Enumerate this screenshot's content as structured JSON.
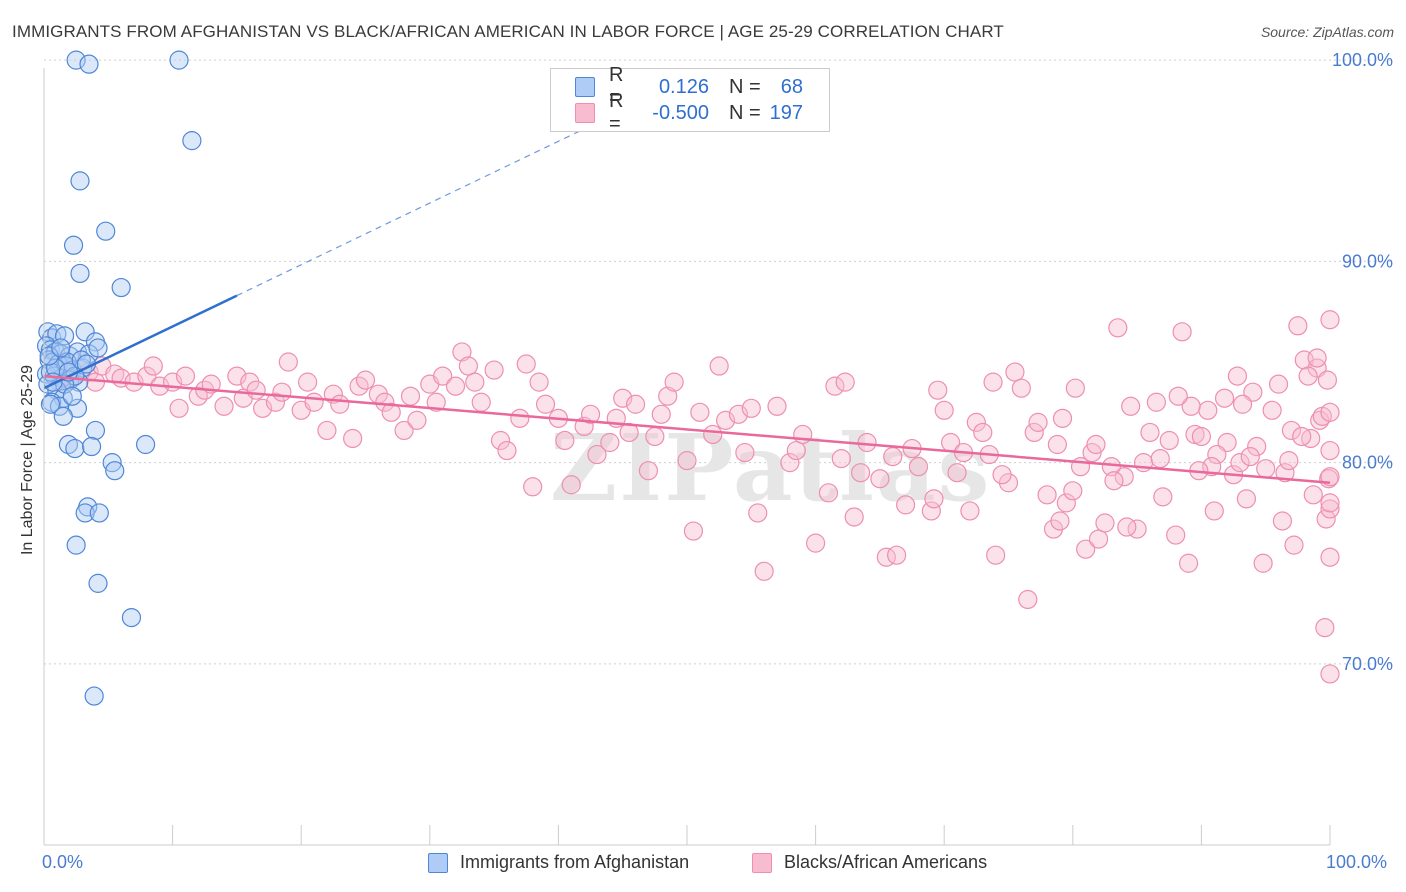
{
  "header": {
    "title": "IMMIGRANTS FROM AFGHANISTAN VS BLACK/AFRICAN AMERICAN IN LABOR FORCE | AGE 25-29 CORRELATION CHART",
    "source": "Source: ZipAtlas.com"
  },
  "legend": {
    "rows": [
      {
        "r_label": "R =",
        "r_value": "0.126",
        "n_label": "N =",
        "n_value": "68"
      },
      {
        "r_label": "R =",
        "r_value": "-0.500",
        "n_label": "N =",
        "n_value": "197"
      }
    ]
  },
  "colors": {
    "blue_fill": "#aeccf5",
    "blue_stroke": "#4f86d6",
    "blue_line": "#2f6fcf",
    "pink_fill": "#f7bcd0",
    "pink_stroke": "#ee8fb0",
    "pink_line": "#e8699a",
    "axis_text": "#4a7bd0",
    "grid": "#cfcfcf"
  },
  "watermark": "ZIPatlas",
  "chart_data": {
    "type": "scatter",
    "title": "IMMIGRANTS FROM AFGHANISTAN VS BLACK/AFRICAN AMERICAN IN LABOR FORCE | AGE 25-29 CORRELATION CHART",
    "xlabel": "",
    "ylabel": "In Labor Force | Age 25-29",
    "xlim": [
      0,
      100
    ],
    "ylim": [
      61,
      101
    ],
    "x_tick_labels": [
      "0.0%",
      "100.0%"
    ],
    "y_ticks": [
      70,
      80,
      90,
      100
    ],
    "y_tick_labels": [
      "70.0%",
      "80.0%",
      "90.0%",
      "100.0%"
    ],
    "grid": true,
    "legend_position": "top-center",
    "series": [
      {
        "name": "Immigrants from Afghanistan",
        "R": 0.126,
        "N": 68,
        "trend": {
          "x": [
            0,
            15
          ],
          "y": [
            83.7,
            88.3
          ],
          "dashed_extension_to": [
            45,
            97.5
          ]
        },
        "points": [
          [
            2.5,
            100
          ],
          [
            3.5,
            99.8
          ],
          [
            10.5,
            100
          ],
          [
            11.5,
            96
          ],
          [
            2.8,
            94
          ],
          [
            4.8,
            91.5
          ],
          [
            2.3,
            90.8
          ],
          [
            2.8,
            89.4
          ],
          [
            6.0,
            88.7
          ],
          [
            0.3,
            86.5
          ],
          [
            0.6,
            86.2
          ],
          [
            1.0,
            86.4
          ],
          [
            1.6,
            86.3
          ],
          [
            3.2,
            86.5
          ],
          [
            4.0,
            86.0
          ],
          [
            0.2,
            85.8
          ],
          [
            0.5,
            85.6
          ],
          [
            0.9,
            85.5
          ],
          [
            1.3,
            85.4
          ],
          [
            2.0,
            85.3
          ],
          [
            2.6,
            85.5
          ],
          [
            3.5,
            85.4
          ],
          [
            4.2,
            85.7
          ],
          [
            0.4,
            85.1
          ],
          [
            0.7,
            85.0
          ],
          [
            1.1,
            84.9
          ],
          [
            1.7,
            84.8
          ],
          [
            2.2,
            84.6
          ],
          [
            3.0,
            84.7
          ],
          [
            0.2,
            84.4
          ],
          [
            0.8,
            84.3
          ],
          [
            1.4,
            84.2
          ],
          [
            2.0,
            84.1
          ],
          [
            2.7,
            84.0
          ],
          [
            0.3,
            83.9
          ],
          [
            1.0,
            83.6
          ],
          [
            1.5,
            83.2
          ],
          [
            0.6,
            83.0
          ],
          [
            1.2,
            82.8
          ],
          [
            2.6,
            82.7
          ],
          [
            1.5,
            82.3
          ],
          [
            4.0,
            81.6
          ],
          [
            7.9,
            80.9
          ],
          [
            1.9,
            80.9
          ],
          [
            2.4,
            80.7
          ],
          [
            3.7,
            80.8
          ],
          [
            5.3,
            80.0
          ],
          [
            5.5,
            79.6
          ],
          [
            3.4,
            77.8
          ],
          [
            3.2,
            77.5
          ],
          [
            4.3,
            77.5
          ],
          [
            2.5,
            75.9
          ],
          [
            4.2,
            74.0
          ],
          [
            6.8,
            72.3
          ],
          [
            3.9,
            68.4
          ],
          [
            0.5,
            84.5
          ],
          [
            1.8,
            85.0
          ],
          [
            2.4,
            84.3
          ],
          [
            0.9,
            84.7
          ],
          [
            1.6,
            83.9
          ],
          [
            0.4,
            85.3
          ],
          [
            2.9,
            85.1
          ],
          [
            0.7,
            84.0
          ],
          [
            1.3,
            85.7
          ],
          [
            3.3,
            84.9
          ],
          [
            0.5,
            82.9
          ],
          [
            1.9,
            84.5
          ],
          [
            2.2,
            83.3
          ]
        ]
      },
      {
        "name": "Blacks/African Americans",
        "R": -0.5,
        "N": 197,
        "trend": {
          "x": [
            0,
            100
          ],
          "y": [
            84.3,
            79.0
          ]
        },
        "points": [
          [
            1.2,
            84.0
          ],
          [
            1.5,
            85.0
          ],
          [
            2.2,
            84.2
          ],
          [
            3.5,
            84.5
          ],
          [
            4.0,
            84.0
          ],
          [
            4.5,
            84.8
          ],
          [
            5.5,
            84.4
          ],
          [
            6.0,
            84.2
          ],
          [
            7.0,
            84.0
          ],
          [
            8.0,
            84.3
          ],
          [
            8.5,
            84.8
          ],
          [
            9.0,
            83.8
          ],
          [
            10.0,
            84.0
          ],
          [
            10.5,
            82.7
          ],
          [
            11.0,
            84.3
          ],
          [
            12.0,
            83.3
          ],
          [
            12.5,
            83.6
          ],
          [
            13.0,
            83.9
          ],
          [
            14.0,
            82.8
          ],
          [
            15.0,
            84.3
          ],
          [
            15.5,
            83.2
          ],
          [
            16.0,
            84.0
          ],
          [
            16.5,
            83.6
          ],
          [
            17.0,
            82.7
          ],
          [
            18.0,
            83.0
          ],
          [
            18.5,
            83.5
          ],
          [
            19.0,
            85.0
          ],
          [
            20.0,
            82.6
          ],
          [
            20.5,
            84.0
          ],
          [
            21.0,
            83.0
          ],
          [
            22.0,
            81.6
          ],
          [
            22.5,
            83.4
          ],
          [
            23.0,
            82.9
          ],
          [
            24.0,
            81.2
          ],
          [
            24.5,
            83.8
          ],
          [
            25.0,
            84.1
          ],
          [
            26.0,
            83.4
          ],
          [
            26.5,
            83.0
          ],
          [
            27.0,
            82.5
          ],
          [
            28.0,
            81.6
          ],
          [
            28.5,
            83.3
          ],
          [
            29.0,
            82.1
          ],
          [
            30.0,
            83.9
          ],
          [
            30.5,
            83.0
          ],
          [
            31.0,
            84.3
          ],
          [
            32.0,
            83.8
          ],
          [
            32.5,
            85.5
          ],
          [
            33.0,
            84.8
          ],
          [
            33.5,
            84.0
          ],
          [
            34.0,
            83.0
          ],
          [
            35.0,
            84.6
          ],
          [
            35.5,
            81.1
          ],
          [
            36.0,
            80.6
          ],
          [
            37.0,
            82.2
          ],
          [
            37.5,
            84.9
          ],
          [
            38.0,
            78.8
          ],
          [
            38.5,
            84.0
          ],
          [
            39.0,
            82.9
          ],
          [
            40.0,
            82.2
          ],
          [
            40.5,
            81.1
          ],
          [
            41.0,
            78.9
          ],
          [
            42.0,
            81.8
          ],
          [
            42.5,
            82.4
          ],
          [
            43.0,
            80.4
          ],
          [
            44.0,
            81.0
          ],
          [
            44.5,
            82.2
          ],
          [
            45.0,
            83.2
          ],
          [
            45.5,
            81.5
          ],
          [
            46.0,
            82.9
          ],
          [
            47.0,
            79.6
          ],
          [
            47.5,
            81.3
          ],
          [
            48.0,
            82.4
          ],
          [
            48.5,
            83.3
          ],
          [
            49.0,
            84.0
          ],
          [
            50.0,
            80.1
          ],
          [
            50.5,
            76.6
          ],
          [
            51.0,
            82.5
          ],
          [
            52.0,
            81.4
          ],
          [
            52.5,
            84.8
          ],
          [
            53.0,
            82.1
          ],
          [
            54.0,
            82.4
          ],
          [
            54.5,
            80.5
          ],
          [
            55.0,
            82.7
          ],
          [
            55.5,
            77.5
          ],
          [
            56.0,
            74.6
          ],
          [
            57.0,
            82.8
          ],
          [
            58.0,
            80.0
          ],
          [
            58.5,
            80.6
          ],
          [
            59.0,
            81.4
          ],
          [
            60.0,
            76.0
          ],
          [
            61.0,
            78.5
          ],
          [
            61.5,
            83.8
          ],
          [
            62.0,
            80.2
          ],
          [
            63.0,
            77.3
          ],
          [
            63.5,
            79.5
          ],
          [
            64.0,
            81.0
          ],
          [
            65.0,
            79.2
          ],
          [
            65.5,
            75.3
          ],
          [
            66.0,
            80.3
          ],
          [
            67.0,
            77.9
          ],
          [
            67.5,
            80.7
          ],
          [
            68.0,
            79.8
          ],
          [
            69.0,
            77.6
          ],
          [
            69.5,
            83.6
          ],
          [
            70.0,
            82.6
          ],
          [
            70.5,
            81.0
          ],
          [
            71.0,
            79.5
          ],
          [
            72.0,
            77.6
          ],
          [
            72.5,
            82.0
          ],
          [
            73.0,
            81.5
          ],
          [
            73.5,
            80.4
          ],
          [
            74.0,
            75.4
          ],
          [
            75.0,
            79.0
          ],
          [
            75.5,
            84.5
          ],
          [
            76.0,
            83.7
          ],
          [
            76.5,
            73.2
          ],
          [
            77.0,
            81.5
          ],
          [
            78.0,
            78.4
          ],
          [
            78.5,
            76.7
          ],
          [
            79.0,
            77.1
          ],
          [
            79.5,
            78.0
          ],
          [
            80.0,
            78.6
          ],
          [
            81.0,
            75.7
          ],
          [
            81.5,
            80.5
          ],
          [
            82.0,
            76.2
          ],
          [
            83.0,
            79.8
          ],
          [
            83.5,
            86.7
          ],
          [
            84.0,
            79.3
          ],
          [
            85.0,
            76.7
          ],
          [
            85.5,
            80.0
          ],
          [
            86.0,
            81.5
          ],
          [
            86.5,
            83.0
          ],
          [
            87.0,
            78.3
          ],
          [
            88.0,
            76.4
          ],
          [
            88.5,
            86.5
          ],
          [
            89.0,
            75.0
          ],
          [
            89.5,
            81.4
          ],
          [
            90.0,
            81.3
          ],
          [
            90.5,
            82.6
          ],
          [
            91.0,
            77.6
          ],
          [
            92.0,
            81.0
          ],
          [
            92.5,
            79.4
          ],
          [
            93.0,
            80.0
          ],
          [
            93.5,
            78.2
          ],
          [
            94.0,
            83.5
          ],
          [
            95.0,
            79.7
          ],
          [
            95.5,
            82.6
          ],
          [
            96.0,
            83.9
          ],
          [
            96.5,
            79.5
          ],
          [
            97.0,
            81.6
          ],
          [
            97.5,
            86.8
          ],
          [
            98.0,
            85.1
          ],
          [
            98.5,
            81.2
          ],
          [
            99.0,
            84.7
          ],
          [
            99.2,
            82.1
          ],
          [
            99.4,
            82.3
          ],
          [
            99.6,
            71.8
          ],
          [
            99.7,
            77.2
          ],
          [
            99.8,
            84.1
          ],
          [
            99.9,
            79.2
          ],
          [
            100.0,
            80.6
          ],
          [
            100.0,
            82.5
          ],
          [
            100.0,
            75.3
          ],
          [
            100.0,
            69.5
          ],
          [
            100.0,
            87.1
          ],
          [
            100.0,
            77.7
          ],
          [
            100.0,
            79.3
          ],
          [
            100.0,
            78.0
          ],
          [
            99.0,
            85.2
          ],
          [
            98.7,
            78.4
          ],
          [
            98.3,
            84.3
          ],
          [
            97.8,
            81.3
          ],
          [
            97.2,
            75.9
          ],
          [
            96.8,
            80.1
          ],
          [
            96.3,
            77.1
          ],
          [
            94.8,
            75.0
          ],
          [
            94.3,
            80.8
          ],
          [
            93.8,
            80.3
          ],
          [
            93.2,
            82.9
          ],
          [
            92.8,
            84.3
          ],
          [
            91.8,
            83.2
          ],
          [
            91.2,
            80.4
          ],
          [
            90.8,
            79.8
          ],
          [
            89.8,
            79.6
          ],
          [
            89.2,
            82.8
          ],
          [
            88.2,
            83.3
          ],
          [
            87.5,
            81.1
          ],
          [
            86.8,
            80.2
          ],
          [
            84.5,
            82.8
          ],
          [
            84.2,
            76.8
          ],
          [
            83.2,
            79.1
          ],
          [
            82.5,
            77.0
          ],
          [
            81.8,
            80.9
          ],
          [
            80.6,
            79.8
          ],
          [
            80.2,
            83.7
          ],
          [
            79.2,
            82.2
          ],
          [
            78.8,
            80.9
          ],
          [
            77.3,
            82.0
          ],
          [
            74.5,
            79.4
          ],
          [
            73.8,
            84.0
          ],
          [
            71.5,
            80.5
          ],
          [
            69.2,
            78.2
          ],
          [
            66.3,
            75.4
          ],
          [
            62.3,
            84.0
          ]
        ]
      }
    ]
  },
  "bottom_legend": {
    "items": [
      "Immigrants from Afghanistan",
      "Blacks/African Americans"
    ]
  }
}
